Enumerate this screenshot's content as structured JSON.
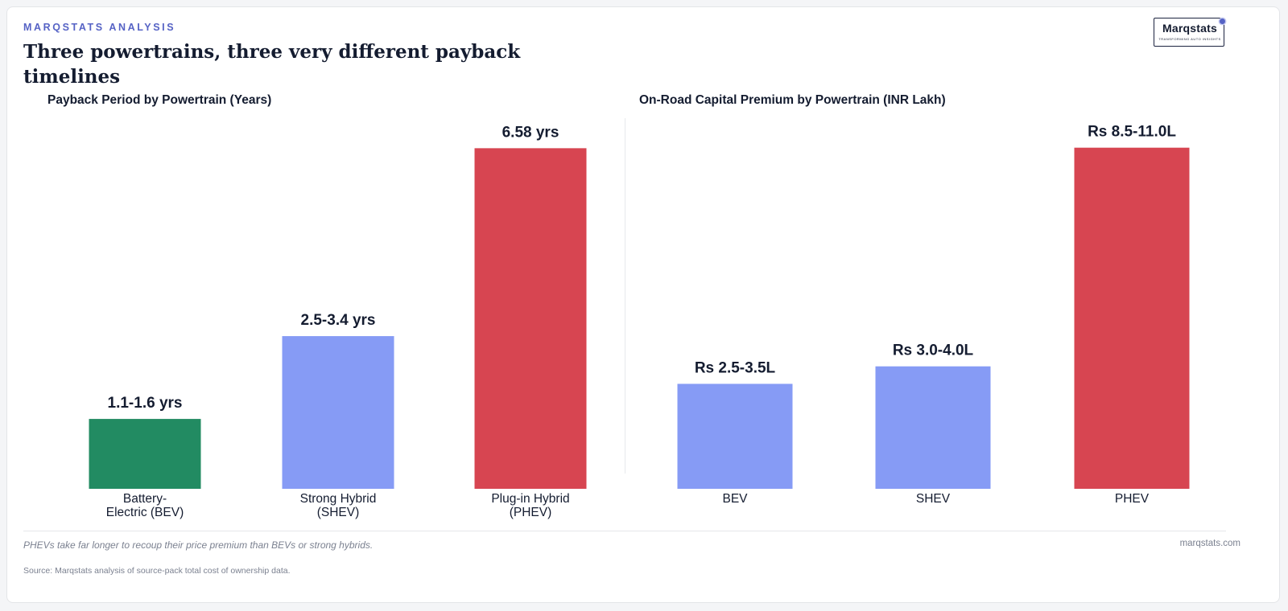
{
  "header": {
    "kicker": "MARQSTATS ANALYSIS",
    "title": "Three powertrains, three very different payback timelines"
  },
  "logo": {
    "wordmark": "Marqstats",
    "tagline": "TRANSFORMING AUTO INSIGHTS"
  },
  "chart_data": [
    {
      "type": "bar",
      "title": "Payback Period by Powertrain (Years)",
      "categories": [
        "Battery-\nElectric (BEV)",
        "Strong Hybrid\n(SHEV)",
        "Plug-in Hybrid\n(PHEV)"
      ],
      "values": [
        1.35,
        2.95,
        6.58
      ],
      "data_labels": [
        "1.1-1.6 yrs",
        "2.5-3.4 yrs",
        "6.58 yrs"
      ],
      "colors": [
        "#228b62",
        "#869bf5",
        "#d74551"
      ],
      "ylim": [
        0,
        7.3
      ],
      "grid": false
    },
    {
      "type": "bar",
      "title": "On-Road Capital Premium by Powertrain (INR Lakh)",
      "categories": [
        "BEV",
        "SHEV",
        "PHEV"
      ],
      "values": [
        3.0,
        3.5,
        9.75
      ],
      "data_labels": [
        "Rs 2.5-3.5L",
        "Rs 3.0-4.0L",
        "Rs 8.5-11.0L"
      ],
      "colors": [
        "#869bf5",
        "#869bf5",
        "#d74551"
      ],
      "ylim": [
        0,
        10.8
      ],
      "grid": false
    }
  ],
  "footer": {
    "takeaway": "PHEVs take far longer to recoup their price premium than BEVs or strong hybrids.",
    "site": "marqstats.com",
    "source": "Source: Marqstats analysis of source-pack total cost of ownership data."
  }
}
